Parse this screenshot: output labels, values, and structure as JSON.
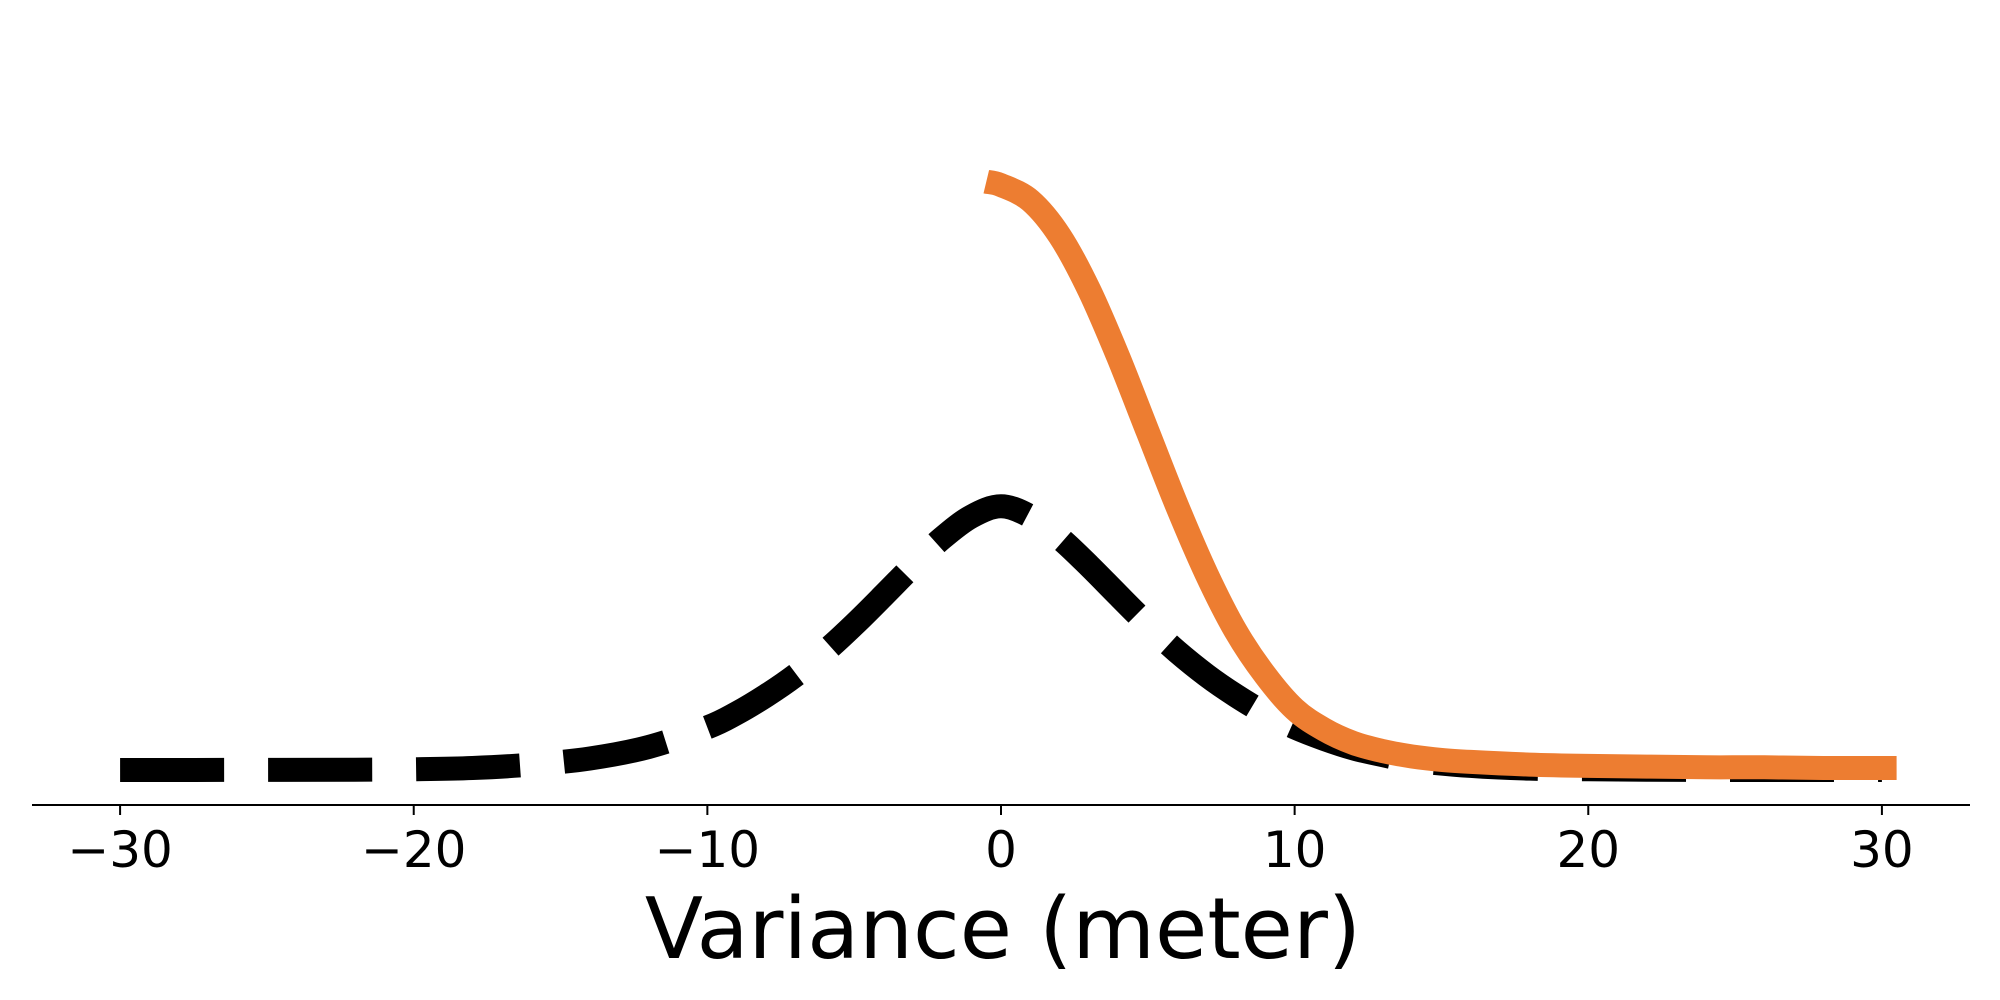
{
  "chart_data": {
    "type": "line",
    "title": "",
    "xlabel": "Variance (meter)",
    "ylabel": "",
    "xlim": [
      -33,
      33
    ],
    "ylim": [
      0,
      1.05
    ],
    "x_ticks": [
      -30,
      -20,
      -10,
      0,
      10,
      20,
      30
    ],
    "x_tick_labels": [
      "−30",
      "−20",
      "−10",
      "0",
      "10",
      "20",
      "30"
    ],
    "y_axis_visible": false,
    "grid": false,
    "legend": "none",
    "series": [
      {
        "style": "dashed",
        "color": "#000000",
        "x": [
          -30,
          -26,
          -22,
          -20,
          -18,
          -16,
          -14,
          -12,
          -10,
          -9,
          -8,
          -7,
          -6,
          -5,
          -4,
          -3,
          -2,
          -1,
          0,
          1,
          2,
          3,
          4,
          5,
          6,
          7,
          8,
          9,
          10,
          11,
          12,
          13,
          14,
          16,
          18,
          20,
          22,
          24,
          26,
          28,
          30
        ],
        "y": [
          0.0,
          0.0001,
          0.0005,
          0.001,
          0.003,
          0.008,
          0.017,
          0.034,
          0.063,
          0.084,
          0.11,
          0.14,
          0.175,
          0.215,
          0.258,
          0.302,
          0.343,
          0.375,
          0.39,
          0.375,
          0.343,
          0.302,
          0.258,
          0.215,
          0.175,
          0.14,
          0.11,
          0.084,
          0.063,
          0.046,
          0.032,
          0.022,
          0.014,
          0.006,
          0.002,
          0.001,
          0.0003,
          0.0001,
          0.0,
          0.0,
          0.0
        ]
      },
      {
        "style": "solid",
        "color": "#ed7d31",
        "x": [
          -0.5,
          0,
          1,
          2,
          3,
          4,
          5,
          6,
          7,
          8,
          9,
          10,
          11,
          12,
          13,
          14,
          15,
          16,
          18,
          20,
          22,
          24,
          26,
          28,
          30.5
        ],
        "y": [
          0.87,
          0.865,
          0.842,
          0.79,
          0.71,
          0.61,
          0.5,
          0.39,
          0.29,
          0.205,
          0.14,
          0.09,
          0.06,
          0.04,
          0.028,
          0.02,
          0.015,
          0.012,
          0.008,
          0.006,
          0.005,
          0.004,
          0.004,
          0.003,
          0.003
        ]
      }
    ]
  }
}
